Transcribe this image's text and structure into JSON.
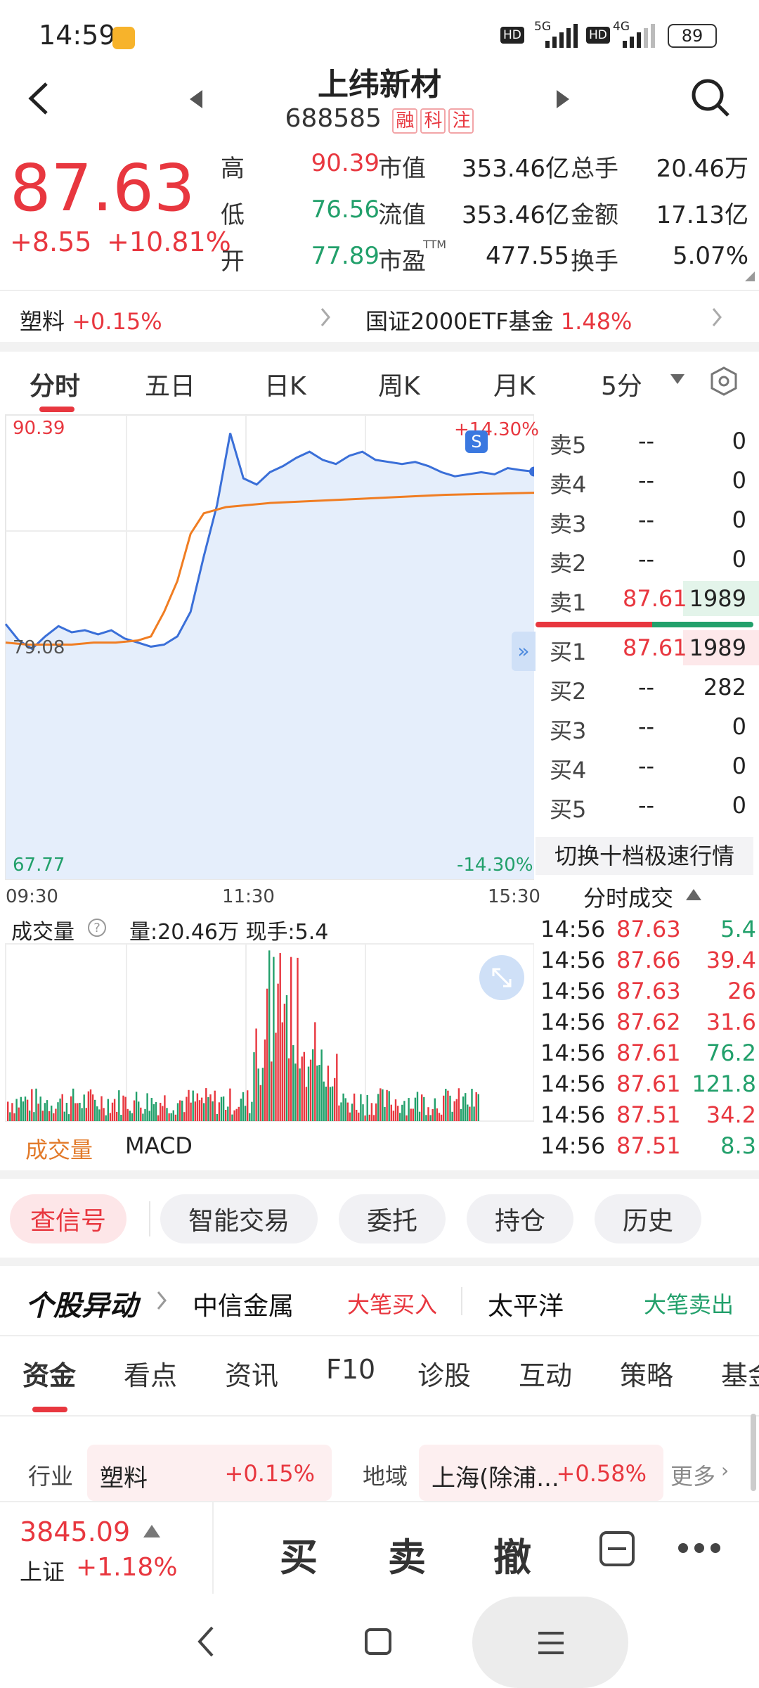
{
  "status_bar": {
    "time": "14:59",
    "battery": "89",
    "net1": "5G",
    "net2": "4G",
    "hd": "HD"
  },
  "header": {
    "title": "上纬新材",
    "code": "688585",
    "badges": [
      "融",
      "科",
      "注"
    ]
  },
  "quote": {
    "price": "87.63",
    "change": "+8.55",
    "change_pct": "+10.81%",
    "rows": [
      {
        "l1": "高",
        "v1": "90.39",
        "l2": "市值",
        "v2": "353.46亿",
        "l3": "总手",
        "v3": "20.46万"
      },
      {
        "l1": "低",
        "v1": "76.56",
        "l2": "流值",
        "v2": "353.46亿",
        "l3": "金额",
        "v3": "17.13亿"
      },
      {
        "l1": "开",
        "v1": "77.89",
        "l2": "市盈",
        "l2sup": "TTM",
        "v2": "477.55",
        "l3": "换手",
        "v3": "5.07%"
      }
    ]
  },
  "sector_bar": {
    "left_name": "塑料",
    "left_pct": "+0.15%",
    "right_name": "国证2000ETF基金",
    "right_pct": "1.48%"
  },
  "chart_tabs": [
    "分时",
    "五日",
    "日K",
    "周K",
    "月K",
    "5分"
  ],
  "chart_data": {
    "type": "line",
    "ylim": [
      67.77,
      90.39
    ],
    "ref_price": "79.08",
    "y_top_label": "90.39",
    "y_mid_label": "79.08",
    "y_bottom_label": "67.77",
    "pct_top": "+14.30%",
    "pct_bottom": "-14.30%",
    "x_labels": [
      "09:30",
      "11:30",
      "15:30"
    ],
    "series": [
      {
        "color": "#3a6fd8",
        "x": [
          0,
          6,
          12,
          18,
          24,
          30,
          36,
          42,
          48,
          54,
          60,
          66,
          72,
          78,
          84,
          90,
          96,
          102,
          108,
          114,
          120,
          126,
          132,
          138,
          144,
          150,
          156,
          162,
          168,
          174,
          180,
          186,
          192,
          198,
          204,
          210,
          216,
          222,
          228,
          234,
          240
        ],
        "values": [
          80.2,
          79.4,
          79.0,
          79.6,
          80.1,
          79.8,
          79.9,
          79.7,
          79.9,
          79.5,
          79.3,
          79.1,
          79.2,
          79.6,
          80.8,
          83.5,
          86.0,
          89.5,
          87.3,
          87.0,
          87.6,
          87.9,
          88.3,
          88.6,
          88.2,
          88.0,
          88.4,
          88.6,
          88.2,
          88.1,
          88.0,
          88.1,
          87.9,
          87.6,
          87.4,
          87.5,
          87.6,
          87.5,
          87.8,
          87.7,
          87.63
        ]
      },
      {
        "color": "#f07d22",
        "x": [
          0,
          10,
          20,
          30,
          40,
          50,
          60,
          66,
          72,
          78,
          84,
          90,
          100,
          120,
          140,
          160,
          180,
          200,
          240
        ],
        "values": [
          79.3,
          79.2,
          79.2,
          79.2,
          79.3,
          79.3,
          79.4,
          79.6,
          80.8,
          82.3,
          84.6,
          85.6,
          85.9,
          86.1,
          86.2,
          86.3,
          86.4,
          86.5,
          86.6
        ]
      }
    ]
  },
  "order_book": {
    "sells": [
      {
        "label": "卖5",
        "price": "--",
        "vol": "0"
      },
      {
        "label": "卖4",
        "price": "--",
        "vol": "0"
      },
      {
        "label": "卖3",
        "price": "--",
        "vol": "0"
      },
      {
        "label": "卖2",
        "price": "--",
        "vol": "0"
      },
      {
        "label": "卖1",
        "price": "87.61",
        "vol": "1989"
      }
    ],
    "buys": [
      {
        "label": "买1",
        "price": "87.61",
        "vol": "1989"
      },
      {
        "label": "买2",
        "price": "--",
        "vol": "282"
      },
      {
        "label": "买3",
        "price": "--",
        "vol": "0"
      },
      {
        "label": "买4",
        "price": "--",
        "vol": "0"
      },
      {
        "label": "买5",
        "price": "--",
        "vol": "0"
      }
    ],
    "switch_label": "切换十档极速行情",
    "ticks_title": "分时成交"
  },
  "ticks": [
    {
      "time": "14:56",
      "price": "87.63",
      "vol": "5.4",
      "dir": "up"
    },
    {
      "time": "14:56",
      "price": "87.66",
      "vol": "39.4",
      "dir": "up"
    },
    {
      "time": "14:56",
      "price": "87.63",
      "vol": "26",
      "dir": "up"
    },
    {
      "time": "14:56",
      "price": "87.62",
      "vol": "31.6",
      "dir": "up"
    },
    {
      "time": "14:56",
      "price": "87.61",
      "vol": "76.2",
      "dir": "down"
    },
    {
      "time": "14:56",
      "price": "87.61",
      "vol": "121.8",
      "dir": "down"
    },
    {
      "time": "14:56",
      "price": "87.51",
      "vol": "34.2",
      "dir": "up"
    },
    {
      "time": "14:56",
      "price": "87.51",
      "vol": "8.3",
      "dir": "down"
    }
  ],
  "volume": {
    "label": "成交量",
    "summary": "量:20.46万 现手:5.4",
    "tabs": [
      "成交量",
      "MACD"
    ]
  },
  "actions": [
    "查信号",
    "智能交易",
    "委托",
    "持仓",
    "历史"
  ],
  "alerts": {
    "title": "个股异动",
    "item1_name": "中信金属",
    "item1_tag": "大笔买入",
    "item2_name": "太平洋",
    "item2_tag": "大笔卖出"
  },
  "feature_tabs": [
    "资金",
    "看点",
    "资讯",
    "F10",
    "诊股",
    "互动",
    "策略",
    "基金"
  ],
  "industry": {
    "label": "行业",
    "name": "塑料",
    "pct": "+0.15%",
    "region_label": "地域",
    "region_name": "上海(除浦...",
    "region_pct": "+0.58%",
    "more": "更多"
  },
  "bottom": {
    "index_value": "3845.09",
    "index_name": "上证",
    "index_pct": "+1.18%",
    "buy": "买",
    "sell": "卖",
    "cancel": "撤"
  }
}
